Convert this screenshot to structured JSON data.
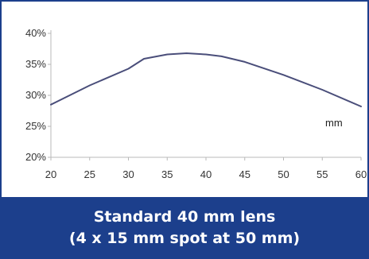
{
  "chart_data": {
    "type": "line",
    "title": "",
    "xlabel": "",
    "ylabel": "",
    "annotation": "mm",
    "x_ticks": [
      "20",
      "25",
      "30",
      "35",
      "40",
      "45",
      "50",
      "55",
      "60"
    ],
    "y_ticks": [
      "20%",
      "25%",
      "30%",
      "35%",
      "40%"
    ],
    "xlim": [
      20,
      60
    ],
    "ylim": [
      20,
      40
    ],
    "grid": false,
    "series": [
      {
        "color": "#4a4e7a",
        "x": [
          20,
          25,
          30,
          32,
          35,
          37.5,
          40,
          42,
          45,
          50,
          55,
          60
        ],
        "y": [
          28.5,
          31.6,
          34.3,
          35.9,
          36.6,
          36.8,
          36.6,
          36.3,
          35.4,
          33.3,
          30.9,
          28.2
        ]
      }
    ]
  },
  "caption": {
    "line1": "Standard 40 mm lens",
    "line2": "(4 x 15 mm spot at 50 mm)"
  },
  "colors": {
    "brand_blue": "#1c3f8c",
    "axis": "#b8b8b8"
  }
}
